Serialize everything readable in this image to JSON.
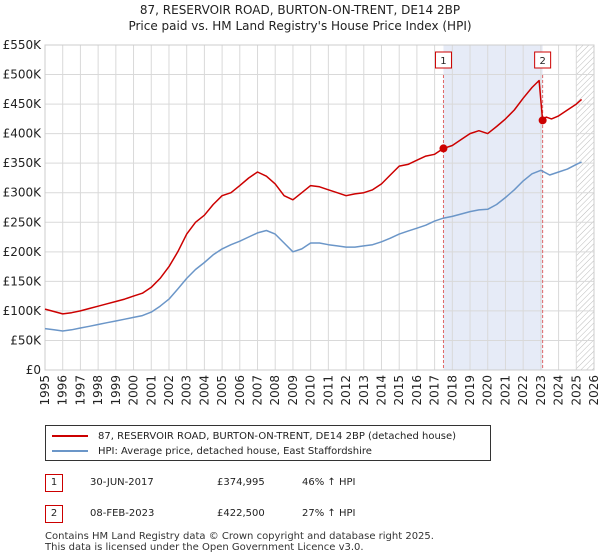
{
  "title": {
    "line1": "87, RESERVOIR ROAD, BURTON-ON-TRENT, DE14 2BP",
    "line2": "Price paid vs. HM Land Registry's House Price Index (HPI)"
  },
  "colors": {
    "price_line": "#cc0000",
    "hpi_line": "#6b96c8",
    "shade": "#e6ebf7",
    "grid": "#d9d9d9",
    "marker_vline": "#e06666"
  },
  "chart_data": {
    "type": "line",
    "xlim": [
      1995,
      2026
    ],
    "ylim": [
      0,
      550000
    ],
    "x_ticks": [
      "1995",
      "1996",
      "1997",
      "1998",
      "1999",
      "2000",
      "2001",
      "2002",
      "2003",
      "2004",
      "2005",
      "2006",
      "2007",
      "2008",
      "2009",
      "2010",
      "2011",
      "2012",
      "2013",
      "2014",
      "2015",
      "2016",
      "2017",
      "2018",
      "2019",
      "2020",
      "2021",
      "2022",
      "2023",
      "2024",
      "2025",
      "2026"
    ],
    "y_ticks": [
      {
        "value": 0,
        "label": "£0"
      },
      {
        "value": 50000,
        "label": "£50K"
      },
      {
        "value": 100000,
        "label": "£100K"
      },
      {
        "value": 150000,
        "label": "£150K"
      },
      {
        "value": 200000,
        "label": "£200K"
      },
      {
        "value": 250000,
        "label": "£250K"
      },
      {
        "value": 300000,
        "label": "£300K"
      },
      {
        "value": 350000,
        "label": "£350K"
      },
      {
        "value": 400000,
        "label": "£400K"
      },
      {
        "value": 450000,
        "label": "£450K"
      },
      {
        "value": 500000,
        "label": "£500K"
      },
      {
        "value": 550000,
        "label": "£550K"
      }
    ],
    "series": [
      {
        "name": "87, RESERVOIR ROAD, BURTON-ON-TRENT, DE14 2BP (detached house)",
        "color": "#cc0000",
        "x": [
          1995.0,
          1995.5,
          1996.0,
          1996.5,
          1997.0,
          1997.5,
          1998.0,
          1998.5,
          1999.0,
          1999.5,
          2000.0,
          2000.5,
          2001.0,
          2001.5,
          2002.0,
          2002.5,
          2003.0,
          2003.5,
          2004.0,
          2004.5,
          2005.0,
          2005.5,
          2006.0,
          2006.5,
          2007.0,
          2007.5,
          2008.0,
          2008.5,
          2009.0,
          2009.5,
          2010.0,
          2010.5,
          2011.0,
          2011.5,
          2012.0,
          2012.5,
          2013.0,
          2013.5,
          2014.0,
          2014.5,
          2015.0,
          2015.5,
          2016.0,
          2016.5,
          2017.0,
          2017.5,
          2018.0,
          2018.5,
          2019.0,
          2019.5,
          2020.0,
          2020.5,
          2021.0,
          2021.5,
          2022.0,
          2022.5,
          2022.9,
          2023.1,
          2023.3,
          2023.6,
          2024.0,
          2024.5,
          2025.0,
          2025.3
        ],
        "values": [
          103000,
          99000,
          95000,
          97000,
          100000,
          104000,
          108000,
          112000,
          116000,
          120000,
          125000,
          130000,
          140000,
          155000,
          175000,
          200000,
          230000,
          250000,
          262000,
          280000,
          295000,
          300000,
          312000,
          325000,
          335000,
          328000,
          315000,
          295000,
          288000,
          300000,
          312000,
          310000,
          305000,
          300000,
          295000,
          298000,
          300000,
          305000,
          315000,
          330000,
          345000,
          348000,
          355000,
          362000,
          365000,
          375000,
          380000,
          390000,
          400000,
          405000,
          400000,
          412000,
          425000,
          440000,
          460000,
          478000,
          490000,
          422500,
          428000,
          425000,
          430000,
          440000,
          450000,
          458000
        ]
      },
      {
        "name": "HPI: Average price, detached house, East Staffordshire",
        "color": "#6b96c8",
        "x": [
          1995.0,
          1995.5,
          1996.0,
          1996.5,
          1997.0,
          1997.5,
          1998.0,
          1998.5,
          1999.0,
          1999.5,
          2000.0,
          2000.5,
          2001.0,
          2001.5,
          2002.0,
          2002.5,
          2003.0,
          2003.5,
          2004.0,
          2004.5,
          2005.0,
          2005.5,
          2006.0,
          2006.5,
          2007.0,
          2007.5,
          2008.0,
          2008.5,
          2009.0,
          2009.5,
          2010.0,
          2010.5,
          2011.0,
          2011.5,
          2012.0,
          2012.5,
          2013.0,
          2013.5,
          2014.0,
          2014.5,
          2015.0,
          2015.5,
          2016.0,
          2016.5,
          2017.0,
          2017.5,
          2018.0,
          2018.5,
          2019.0,
          2019.5,
          2020.0,
          2020.5,
          2021.0,
          2021.5,
          2022.0,
          2022.5,
          2023.0,
          2023.5,
          2024.0,
          2024.5,
          2025.0,
          2025.3
        ],
        "values": [
          70000,
          68000,
          66000,
          68000,
          71000,
          74000,
          77000,
          80000,
          83000,
          86000,
          89000,
          92000,
          98000,
          108000,
          120000,
          137000,
          155000,
          170000,
          182000,
          195000,
          205000,
          212000,
          218000,
          225000,
          232000,
          236000,
          230000,
          215000,
          200000,
          205000,
          215000,
          215000,
          212000,
          210000,
          208000,
          208000,
          210000,
          212000,
          217000,
          223000,
          230000,
          235000,
          240000,
          245000,
          252000,
          257000,
          260000,
          264000,
          268000,
          271000,
          272000,
          280000,
          292000,
          305000,
          320000,
          332000,
          338000,
          330000,
          335000,
          340000,
          348000,
          352000
        ]
      }
    ],
    "sales": [
      {
        "label": "1",
        "x": 2017.5,
        "value": 374995
      },
      {
        "label": "2",
        "x": 2023.1,
        "value": 422500
      }
    ],
    "shade_range": [
      2017.5,
      2023.1
    ],
    "hatch_from": 2025.0
  },
  "legend": {
    "price_label": "87, RESERVOIR ROAD, BURTON-ON-TRENT, DE14 2BP (detached house)",
    "hpi_label": "HPI: Average price, detached house, East Staffordshire"
  },
  "sales_table": [
    {
      "badge": "1",
      "date": "30-JUN-2017",
      "price": "£374,995",
      "hpi": "46% ↑ HPI"
    },
    {
      "badge": "2",
      "date": "08-FEB-2023",
      "price": "£422,500",
      "hpi": "27% ↑ HPI"
    }
  ],
  "footer": {
    "line1": "Contains HM Land Registry data © Crown copyright and database right 2025.",
    "line2": "This data is licensed under the Open Government Licence v3.0."
  }
}
